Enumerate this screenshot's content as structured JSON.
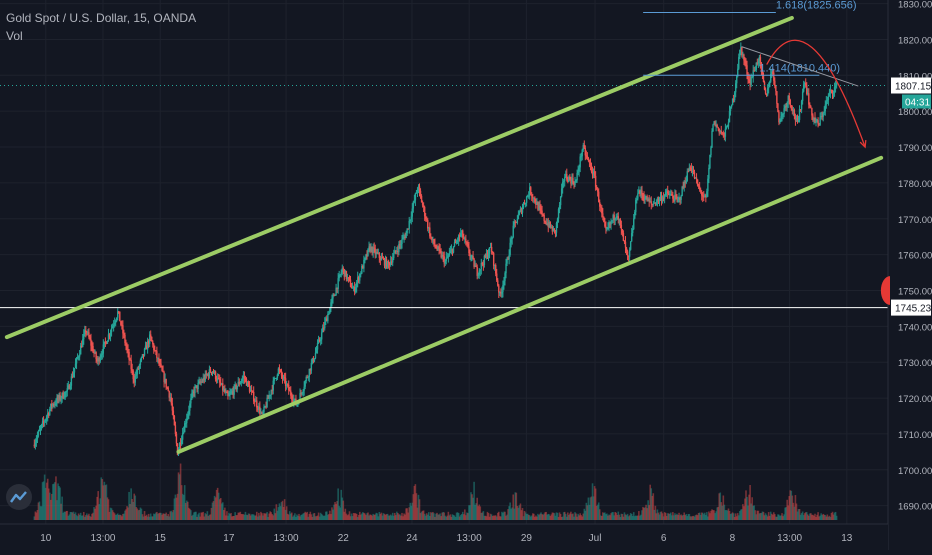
{
  "header": {
    "symbol_line": "Gold Spot / U.S. Dollar, 15, OANDA",
    "indicator_line": "Vol"
  },
  "colors": {
    "background": "#131722",
    "candle_up": "#26a69a",
    "candle_down": "#ef5350",
    "channel": "#9ccc65",
    "fib_line": "#5b9bd5",
    "fib_label": "#5b9bd5",
    "arrow": "#e53935",
    "price_line": "#26a69a",
    "level_line": "#ffffff",
    "axis_text": "#b2b5be"
  },
  "chart_data": {
    "type": "candlestick",
    "title": "Gold Spot / U.S. Dollar, 15, OANDA",
    "ylim": [
      1686,
      1831
    ],
    "y_ticks": [
      1830,
      1820,
      1810,
      1800,
      1790,
      1780,
      1770,
      1760,
      1750,
      1740,
      1730,
      1720,
      1710,
      1700,
      1690
    ],
    "y_tick_labels": [
      "1830.000",
      "1820.000",
      "1810.000",
      "1800.000",
      "1790.000",
      "1780.000",
      "1770.000",
      "1760.000",
      "1750.000",
      "1740.000",
      "1730.000",
      "1720.000",
      "1710.000",
      "1700.000",
      "1690.000"
    ],
    "x_ticks": [
      "10",
      "13:00",
      "15",
      "17",
      "13:00",
      "22",
      "24",
      "13:00",
      "29",
      "Jul",
      "6",
      "8",
      "13:00",
      "13"
    ],
    "x_tick_positions": [
      0.5,
      3,
      5.5,
      8.5,
      11,
      13.5,
      16.5,
      19,
      21.5,
      24.5,
      27.5,
      30.5,
      33,
      35.5
    ],
    "x_range": [
      -1.5,
      37.3
    ],
    "price_path": [
      [
        0,
        1707
      ],
      [
        0.8,
        1718
      ],
      [
        1.5,
        1722
      ],
      [
        2.3,
        1739
      ],
      [
        2.8,
        1730
      ],
      [
        3.7,
        1744
      ],
      [
        4.4,
        1725
      ],
      [
        5.1,
        1737
      ],
      [
        6.0,
        1720
      ],
      [
        6.3,
        1705
      ],
      [
        7.0,
        1722
      ],
      [
        7.8,
        1728
      ],
      [
        8.5,
        1720
      ],
      [
        9.2,
        1726
      ],
      [
        10.0,
        1715
      ],
      [
        10.7,
        1728
      ],
      [
        11.5,
        1718
      ],
      [
        12.3,
        1732
      ],
      [
        12.8,
        1742
      ],
      [
        13.5,
        1756
      ],
      [
        14.0,
        1750
      ],
      [
        14.7,
        1762
      ],
      [
        15.5,
        1757
      ],
      [
        16.3,
        1766
      ],
      [
        16.8,
        1779
      ],
      [
        17.4,
        1764
      ],
      [
        18.0,
        1758
      ],
      [
        18.7,
        1766
      ],
      [
        19.4,
        1755
      ],
      [
        20.0,
        1762
      ],
      [
        20.4,
        1748
      ],
      [
        21.0,
        1768
      ],
      [
        21.7,
        1778
      ],
      [
        22.3,
        1770
      ],
      [
        22.8,
        1766
      ],
      [
        23.2,
        1782
      ],
      [
        23.7,
        1780
      ],
      [
        24.0,
        1790
      ],
      [
        24.5,
        1782
      ],
      [
        25.0,
        1766
      ],
      [
        25.5,
        1772
      ],
      [
        26.0,
        1758
      ],
      [
        26.4,
        1778
      ],
      [
        27.0,
        1774
      ],
      [
        27.7,
        1777
      ],
      [
        28.2,
        1775
      ],
      [
        28.7,
        1785
      ],
      [
        29.1,
        1778
      ],
      [
        29.4,
        1775
      ],
      [
        29.7,
        1797
      ],
      [
        30.2,
        1793
      ],
      [
        30.6,
        1804
      ],
      [
        30.9,
        1818
      ],
      [
        31.3,
        1808
      ],
      [
        31.7,
        1815
      ],
      [
        32.0,
        1804
      ],
      [
        32.3,
        1812
      ],
      [
        32.6,
        1797
      ],
      [
        33.0,
        1804
      ],
      [
        33.4,
        1796
      ],
      [
        33.7,
        1809
      ],
      [
        34.0,
        1799
      ],
      [
        34.3,
        1796
      ],
      [
        34.8,
        1805
      ],
      [
        35.1,
        1807
      ]
    ],
    "volume_peaks": [
      [
        0.5,
        0.7
      ],
      [
        1.0,
        0.5
      ],
      [
        3.0,
        0.75
      ],
      [
        4.3,
        0.55
      ],
      [
        6.4,
        0.7
      ],
      [
        8.0,
        0.35
      ],
      [
        10.8,
        0.3
      ],
      [
        13.3,
        0.4
      ],
      [
        16.6,
        0.45
      ],
      [
        19.2,
        0.45
      ],
      [
        21.0,
        0.3
      ],
      [
        24.4,
        0.45
      ],
      [
        26.9,
        0.4
      ],
      [
        30.0,
        0.4
      ],
      [
        31.2,
        0.45
      ],
      [
        33.1,
        0.35
      ]
    ],
    "price_label": "1807.159",
    "countdown_label": "04:31",
    "level_line_value": 1745.23,
    "level_line_label": "1745.230",
    "channel_upper": {
      "from": [
        -1.2,
        1737
      ],
      "to": [
        33.1,
        1826
      ]
    },
    "channel_lower": {
      "from": [
        6.3,
        1705
      ],
      "to": [
        37.0,
        1787
      ]
    },
    "fib_levels": [
      {
        "label": "1.618(1825.656)",
        "value": 1827.5,
        "x_from": 26.6,
        "x_to": 32.4
      },
      {
        "label": "1.414(1810.440)",
        "value": 1810.0,
        "x_from": 26.6,
        "x_to": 34.3
      }
    ],
    "gray_trendline": {
      "from": [
        30.9,
        1818
      ],
      "to": [
        36.0,
        1807
      ]
    },
    "projection_arrow": {
      "start": [
        32.0,
        1813
      ],
      "control": [
        33.8,
        1834
      ],
      "end": [
        36.3,
        1790
      ]
    },
    "grid": true,
    "legend": "top-left"
  }
}
